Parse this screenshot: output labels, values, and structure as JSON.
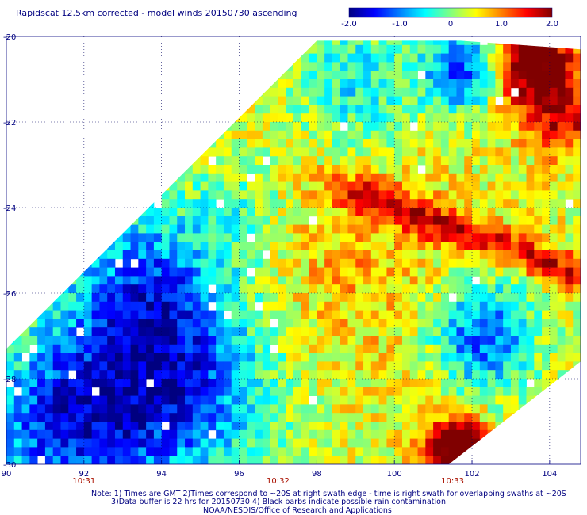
{
  "title": "Rapidscat 12.5km corrected - model winds 20150730 ascending",
  "colorbar": {
    "tick_labels": [
      "-2.0",
      "-1.0",
      "0",
      "1.0",
      "2.0"
    ],
    "tick_values": [
      -2.0,
      -1.0,
      0,
      1.0,
      2.0
    ],
    "range": [
      -2.0,
      2.0
    ],
    "colors": [
      "#000080",
      "#0000ff",
      "#0080ff",
      "#00ffff",
      "#80ff80",
      "#ffff00",
      "#ff8000",
      "#ff0000",
      "#800000"
    ]
  },
  "notes": {
    "line1": "Note: 1) Times are GMT 2)Times correspond to ~20S at right swath edge - time is right swath for overlapping swaths at ~20S",
    "line2": "3)Data buffer is 22 hrs for 20150730 4) Black barbs indicate possible rain contamination",
    "line3": "NOAA/NESDIS/Office of Research and Applications"
  },
  "chart_data": {
    "type": "heatmap",
    "title": "Rapidscat 12.5km corrected - model winds 20150730 ascending",
    "xlim": [
      90,
      104.8
    ],
    "ylim": [
      -30,
      -20
    ],
    "x_tick_labels": [
      "90",
      "92",
      "94",
      "96",
      "98",
      "100",
      "102",
      "104"
    ],
    "x_ticks": [
      90,
      92,
      94,
      96,
      98,
      100,
      102,
      104
    ],
    "y_tick_labels": [
      "-20",
      "-22",
      "-24",
      "-26",
      "-28",
      "-30"
    ],
    "y_ticks": [
      -20,
      -22,
      -24,
      -26,
      -28,
      -30
    ],
    "time_labels": [
      {
        "lon": 92,
        "text": "10:31"
      },
      {
        "lon": 97,
        "text": "10:32"
      },
      {
        "lon": 101.5,
        "text": "10:33"
      }
    ],
    "grid": true,
    "value_range": [
      -2.0,
      2.0
    ],
    "swath_polygon": [
      [
        90,
        -27.3
      ],
      [
        98,
        -20.1
      ],
      [
        101.7,
        -20.1
      ],
      [
        104.8,
        -20.3
      ],
      [
        104.8,
        -27.6
      ],
      [
        101.4,
        -30
      ],
      [
        90,
        -30
      ]
    ],
    "features": [
      {
        "description": "strong positive band",
        "from": [
          98.5,
          -23.5
        ],
        "to": [
          104.5,
          -25.5
        ],
        "value": 1.4
      },
      {
        "description": "strong positive top right",
        "center": [
          103.3,
          -20.8
        ],
        "value": 2.0
      },
      {
        "description": "strong positive bottom",
        "center": [
          101.5,
          -29.6
        ],
        "value": 2.0
      },
      {
        "description": "negative region southwest",
        "center": [
          94,
          -28
        ],
        "value": -1.6
      },
      {
        "description": "negative region east",
        "center": [
          102.5,
          -27
        ],
        "value": -1.2
      }
    ]
  }
}
